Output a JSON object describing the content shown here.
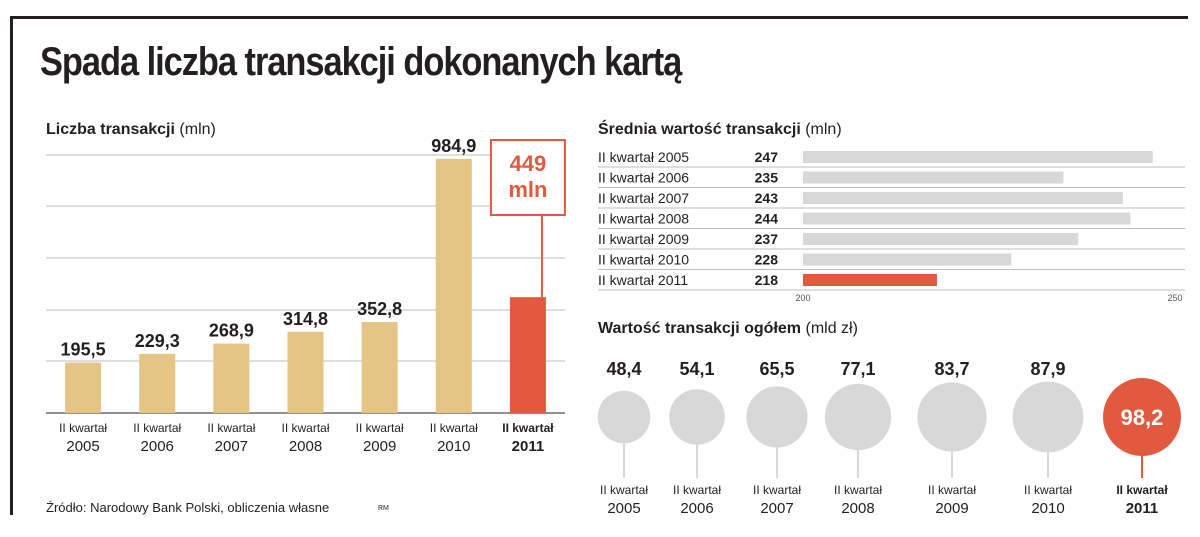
{
  "title": "Spada liczba transakcji dokonanych kartą",
  "source": "Źródło: Narodowy Bank Polski, obliczenia własne",
  "credit": "RM",
  "colors": {
    "bar": "#e4c583",
    "highlight": "#e15a3f",
    "gray": "#d8d8d8",
    "text": "#231f20"
  },
  "chart_data": [
    {
      "type": "bar",
      "title": "Liczba transakcji",
      "unit": "(mln)",
      "categories": [
        {
          "line1": "II kwartał",
          "line2": "2005"
        },
        {
          "line1": "II kwartał",
          "line2": "2006"
        },
        {
          "line1": "II kwartał",
          "line2": "2007"
        },
        {
          "line1": "II kwartał",
          "line2": "2008"
        },
        {
          "line1": "II kwartał",
          "line2": "2009"
        },
        {
          "line1": "II kwartał",
          "line2": "2010"
        },
        {
          "line1": "II kwartał",
          "line2": "2011"
        }
      ],
      "values": [
        195.5,
        229.3,
        268.9,
        314.8,
        352.8,
        984.9,
        449
      ],
      "value_labels": [
        "195,5",
        "229,3",
        "268,9",
        "314,8",
        "352,8",
        "984,9",
        ""
      ],
      "highlight_index": 6,
      "callout": {
        "line1": "449",
        "line2": "mln"
      },
      "ylim": [
        0,
        1000
      ]
    },
    {
      "type": "bar",
      "orientation": "horizontal",
      "title": "Średnia wartość transakcji",
      "unit": "(mln)",
      "categories": [
        "II kwartał 2005",
        "II kwartał 2006",
        "II kwartał 2007",
        "II kwartał 2008",
        "II kwartał 2009",
        "II kwartał 2010",
        "II kwartał 2011"
      ],
      "values": [
        247,
        235,
        243,
        244,
        237,
        228,
        218
      ],
      "value_labels": [
        "247",
        "235",
        "243",
        "244",
        "237",
        "228",
        "218"
      ],
      "highlight_index": 6,
      "xlim": [
        200,
        250
      ],
      "xticks": [
        "200",
        "250"
      ]
    },
    {
      "type": "bubble",
      "title": "Wartość transakcji ogółem",
      "unit": "(mld zł)",
      "categories": [
        {
          "line1": "II kwartał",
          "line2": "2005"
        },
        {
          "line1": "II kwartał",
          "line2": "2006"
        },
        {
          "line1": "II kwartał",
          "line2": "2007"
        },
        {
          "line1": "II kwartał",
          "line2": "2008"
        },
        {
          "line1": "II kwartał",
          "line2": "2009"
        },
        {
          "line1": "II kwartał",
          "line2": "2010"
        },
        {
          "line1": "II kwartał",
          "line2": "2011"
        }
      ],
      "values": [
        48.4,
        54.1,
        65.5,
        77.1,
        83.7,
        87.9,
        98.2
      ],
      "value_labels": [
        "48,4",
        "54,1",
        "65,5",
        "77,1",
        "83,7",
        "87,9",
        "98,2"
      ],
      "highlight_index": 6
    }
  ]
}
